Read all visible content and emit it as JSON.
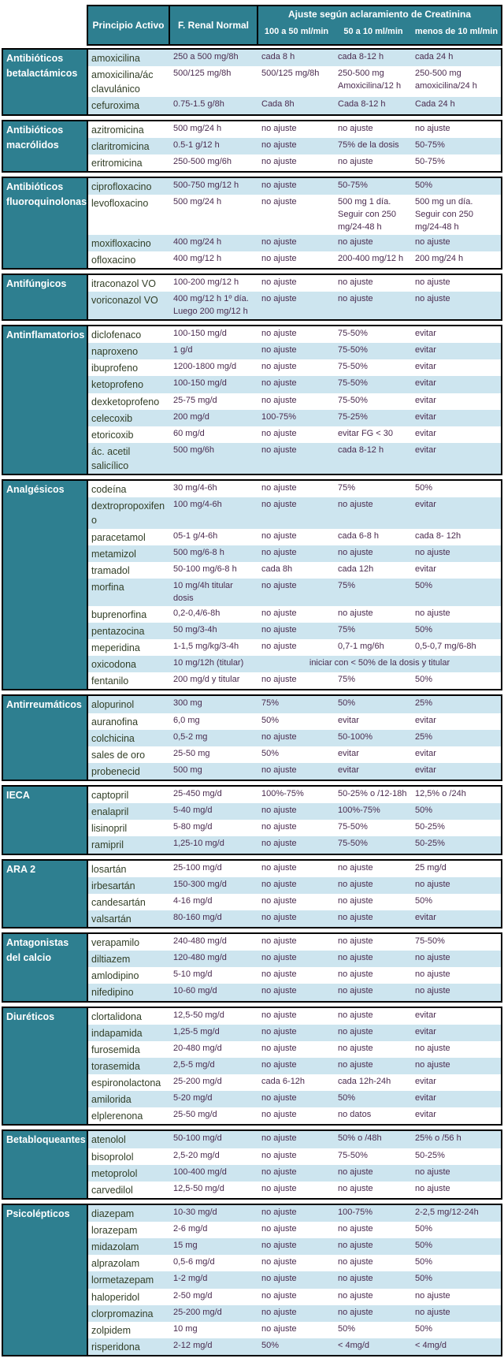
{
  "header": {
    "col_drug": "Principio Activo",
    "col_normal": "F. Renal Normal",
    "adjust_title": "Ajuste según aclaramiento de Creatinina",
    "col_100_50": "100 a 50 ml/min",
    "col_50_10": "50 a 10 ml/min",
    "col_less_10": "menos de 10 ml/min"
  },
  "colors": {
    "header_teal": "#2e7f90",
    "row_shaded": "#cde5ef",
    "row_plain": "#ffffff",
    "drug_text": "#323f27",
    "value_text": "#4a2b4f",
    "border": "#000000"
  },
  "groups": [
    {
      "category": "Antibióticos betalactámicos",
      "first_shaded": true,
      "rows": [
        {
          "drug": "amoxicilina",
          "normal": "250 a 500 mg/8h",
          "c1": "cada 8 h",
          "c2": "cada 8-12 h",
          "c3": "cada 24 h"
        },
        {
          "drug": "amoxicilina/ác clavulánico",
          "normal": "500/125 mg/8h",
          "c1": "500/125 mg/8h",
          "c2": "250-500 mg Amoxicilina/12 h",
          "c3": "250-500 mg amoxicilina/24 h"
        },
        {
          "drug": "cefuroxima",
          "normal": "0.75-1.5 g/8h",
          "c1": "Cada 8h",
          "c2": "Cada 8-12 h",
          "c3": "Cada 24 h"
        }
      ]
    },
    {
      "category": "Antibióticos macrólidos",
      "first_shaded": false,
      "rows": [
        {
          "drug": "azitromicina",
          "normal": "500 mg/24 h",
          "c1": "no ajuste",
          "c2": "no ajuste",
          "c3": "no ajuste"
        },
        {
          "drug": "claritromicina",
          "normal": "0.5-1 g/12 h",
          "c1": "no ajuste",
          "c2": "75% de la dosis",
          "c3": "50-75%"
        },
        {
          "drug": "eritromicina",
          "normal": "250-500 mg/6h",
          "c1": "no ajuste",
          "c2": "no ajuste",
          "c3": "50-75%"
        }
      ]
    },
    {
      "category": "Antibióticos fluoroquinolonas",
      "first_shaded": true,
      "rows": [
        {
          "drug": "ciprofloxacino",
          "normal": "500-750 mg/12 h",
          "c1": "no ajuste",
          "c2": "50-75%",
          "c3": "50%"
        },
        {
          "drug": "levofloxacino",
          "normal": "500 mg/24 h",
          "c1": "no ajuste",
          "c2": "500 mg 1 día. Seguir con 250 mg/24-48 h",
          "c3": "500 mg un día. Seguir con 250 mg/24-48 h"
        },
        {
          "drug": "moxifloxacino",
          "normal": "400 mg/24 h",
          "c1": "no ajuste",
          "c2": "no ajuste",
          "c3": "no ajuste"
        },
        {
          "drug": "ofloxacino",
          "normal": "400 mg/12 h",
          "c1": "no ajuste",
          "c2": "200-400 mg/12 h",
          "c3": "200 mg/24 h"
        }
      ]
    },
    {
      "category": "Antifúngicos",
      "first_shaded": false,
      "rows": [
        {
          "drug": "itraconazol VO",
          "normal": "100-200 mg/12 h",
          "c1": "no ajuste",
          "c2": "no ajuste",
          "c3": "no ajuste"
        },
        {
          "drug": "voriconazol VO",
          "normal": "400 mg/12 h 1º día. Luego 200 mg/12 h",
          "c1": "no ajuste",
          "c2": "no ajuste",
          "c3": "no ajuste"
        }
      ]
    },
    {
      "category": "Antinflamatorios",
      "first_shaded": false,
      "rows": [
        {
          "drug": "diclofenaco",
          "normal": "100-150 mg/d",
          "c1": "no ajuste",
          "c2": "75-50%",
          "c3": "evitar"
        },
        {
          "drug": "naproxeno",
          "normal": "1 g/d",
          "c1": "no ajuste",
          "c2": "75-50%",
          "c3": "evitar"
        },
        {
          "drug": "ibuprofeno",
          "normal": "1200-1800 mg/d",
          "c1": "no ajuste",
          "c2": "75-50%",
          "c3": "evitar"
        },
        {
          "drug": "ketoprofeno",
          "normal": "100-150 mg/d",
          "c1": "no ajuste",
          "c2": "75-50%",
          "c3": "evitar"
        },
        {
          "drug": "dexketoprofeno",
          "normal": "25-75 mg/d",
          "c1": "no ajuste",
          "c2": "75-50%",
          "c3": "evitar"
        },
        {
          "drug": "celecoxib",
          "normal": "200 mg/d",
          "c1": "100-75%",
          "c2": "75-25%",
          "c3": "evitar"
        },
        {
          "drug": "etoricoxib",
          "normal": "60 mg/d",
          "c1": "no ajuste",
          "c2": "evitar FG < 30",
          "c3": "evitar"
        },
        {
          "drug": "ác. acetil salicílico",
          "normal": "500 mg/6h",
          "c1": "no ajuste",
          "c2": "cada 8-12 h",
          "c3": "evitar"
        }
      ]
    },
    {
      "category": "Analgésicos",
      "first_shaded": false,
      "rows": [
        {
          "drug": "codeína",
          "normal": "30 mg/4-6h",
          "c1": "no ajuste",
          "c2": "75%",
          "c3": "50%"
        },
        {
          "drug": "dextropropoxifeno",
          "normal": "100 mg/4-6h",
          "c1": "no ajuste",
          "c2": "no ajuste",
          "c3": "evitar"
        },
        {
          "drug": "paracetamol",
          "normal": "05-1 g/4-6h",
          "c1": "no ajuste",
          "c2": "cada 6-8 h",
          "c3": "cada 8- 12h"
        },
        {
          "drug": "metamizol",
          "normal": "500 mg/6-8 h",
          "c1": "no ajuste",
          "c2": "no ajuste",
          "c3": "no ajuste"
        },
        {
          "drug": "tramadol",
          "normal": "50-100 mg/6-8 h",
          "c1": "cada 8h",
          "c2": "cada 12h",
          "c3": "evitar"
        },
        {
          "drug": "morfina",
          "normal": "10 mg/4h titular dosis",
          "c1": "no ajuste",
          "c2": "75%",
          "c3": "50%"
        },
        {
          "drug": "buprenorfina",
          "normal": "0,2-0,4/6-8h",
          "c1": "no ajuste",
          "c2": "no ajuste",
          "c3": "no ajuste"
        },
        {
          "drug": "pentazocina",
          "normal": "50 mg/3-4h",
          "c1": "no ajuste",
          "c2": "75%",
          "c3": "50%"
        },
        {
          "drug": "meperidina",
          "normal": "1-1,5 mg/kg/3-4h",
          "c1": "no ajuste",
          "c2": "0,7-1 mg/6h",
          "c3": "0,5-0,7 mg/6-8h"
        },
        {
          "drug": "oxicodona",
          "normal": "10 mg/12h (titular)",
          "span": "iniciar con < 50% de la dosis y titular"
        },
        {
          "drug": "fentanilo",
          "normal": "200 mg/d y titular",
          "c1": "no ajuste",
          "c2": "75%",
          "c3": "50%"
        }
      ]
    },
    {
      "category": "Antirreumáticos",
      "first_shaded": true,
      "rows": [
        {
          "drug": "alopurinol",
          "normal": "300 mg",
          "c1": "75%",
          "c2": "50%",
          "c3": "25%"
        },
        {
          "drug": "auranofina",
          "normal": "6,0 mg",
          "c1": "50%",
          "c2": "evitar",
          "c3": "evitar"
        },
        {
          "drug": "colchicina",
          "normal": "0,5-2 mg",
          "c1": "no ajuste",
          "c2": "50-100%",
          "c3": "25%"
        },
        {
          "drug": "sales de oro",
          "normal": "25-50 mg",
          "c1": "50%",
          "c2": "evitar",
          "c3": "evitar"
        },
        {
          "drug": "probenecid",
          "normal": "500 mg",
          "c1": "no ajuste",
          "c2": "evitar",
          "c3": "evitar"
        }
      ]
    },
    {
      "category": "IECA",
      "first_shaded": false,
      "rows": [
        {
          "drug": "captopril",
          "normal": "25-450 mg/d",
          "c1": "100%-75%",
          "c2": "50-25% o /12-18h",
          "c3": "12,5% o /24h"
        },
        {
          "drug": "enalapril",
          "normal": "5-40 mg/d",
          "c1": "no ajuste",
          "c2": "100%-75%",
          "c3": "50%"
        },
        {
          "drug": "lisinopril",
          "normal": "5-80 mg/d",
          "c1": "no ajuste",
          "c2": "75-50%",
          "c3": "50-25%"
        },
        {
          "drug": "ramipril",
          "normal": "1,25-10 mg/d",
          "c1": "no ajuste",
          "c2": "75-50%",
          "c3": "50-25%"
        }
      ]
    },
    {
      "category": "ARA 2",
      "first_shaded": false,
      "rows": [
        {
          "drug": "losartán",
          "normal": "25-100 mg/d",
          "c1": "no ajuste",
          "c2": "no ajuste",
          "c3": "25 mg/d"
        },
        {
          "drug": "irbesartán",
          "normal": "150-300 mg/d",
          "c1": "no ajuste",
          "c2": "no ajuste",
          "c3": "no ajuste"
        },
        {
          "drug": "candesartán",
          "normal": "4-16 mg/d",
          "c1": "no ajuste",
          "c2": "no ajuste",
          "c3": "50%"
        },
        {
          "drug": "valsartán",
          "normal": "80-160 mg/d",
          "c1": "no ajuste",
          "c2": "no ajuste",
          "c3": "evitar"
        }
      ]
    },
    {
      "category": "Antagonistas del calcio",
      "first_shaded": false,
      "rows": [
        {
          "drug": "verapamilo",
          "normal": "240-480 mg/d",
          "c1": "no ajuste",
          "c2": "no ajuste",
          "c3": "75-50%"
        },
        {
          "drug": "diltiazem",
          "normal": "120-480 mg/d",
          "c1": "no ajuste",
          "c2": "no ajuste",
          "c3": "no ajuste"
        },
        {
          "drug": "amlodipino",
          "normal": "5-10 mg/d",
          "c1": "no ajuste",
          "c2": "no ajuste",
          "c3": "no ajuste"
        },
        {
          "drug": "nifedipino",
          "normal": "10-60 mg/d",
          "c1": "no ajuste",
          "c2": "no ajuste",
          "c3": "no ajuste"
        }
      ]
    },
    {
      "category": "Diuréticos",
      "first_shaded": false,
      "rows": [
        {
          "drug": "clortalidona",
          "normal": "12,5-50 mg/d",
          "c1": "no ajuste",
          "c2": "no ajuste",
          "c3": "evitar"
        },
        {
          "drug": "indapamida",
          "normal": "1,25-5 mg/d",
          "c1": "no ajuste",
          "c2": "no ajuste",
          "c3": "evitar"
        },
        {
          "drug": "furosemida",
          "normal": "20-480 mg/d",
          "c1": "no ajuste",
          "c2": "no ajuste",
          "c3": "no ajuste"
        },
        {
          "drug": "torasemida",
          "normal": "2,5-5 mg/d",
          "c1": "no ajuste",
          "c2": "no ajuste",
          "c3": "no ajuste"
        },
        {
          "drug": "espironolactona",
          "normal": "25-200 mg/d",
          "c1": "cada 6-12h",
          "c2": "cada 12h-24h",
          "c3": "evitar"
        },
        {
          "drug": "amilorida",
          "normal": "5-20 mg/d",
          "c1": "no ajuste",
          "c2": "50%",
          "c3": "evitar"
        },
        {
          "drug": "elplerenona",
          "normal": "25-50 mg/d",
          "c1": "no ajuste",
          "c2": "no datos",
          "c3": "evitar"
        }
      ]
    },
    {
      "category": "Betabloqueantes",
      "first_shaded": true,
      "rows": [
        {
          "drug": "atenolol",
          "normal": "50-100 mg/d",
          "c1": "no ajuste",
          "c2": "50% o /48h",
          "c3": "25% o /56 h"
        },
        {
          "drug": "bisoprolol",
          "normal": "2,5-20 mg/d",
          "c1": "no ajuste",
          "c2": "75-50%",
          "c3": "50-25%"
        },
        {
          "drug": "metoprolol",
          "normal": "100-400 mg/d",
          "c1": "no ajuste",
          "c2": "no ajuste",
          "c3": "no ajuste"
        },
        {
          "drug": "carvedilol",
          "normal": "12,5-50 mg/d",
          "c1": "no ajuste",
          "c2": "no ajuste",
          "c3": "no ajuste"
        }
      ]
    },
    {
      "category": "Psicolépticos",
      "first_shaded": true,
      "rows": [
        {
          "drug": "diazepam",
          "normal": "10-30 mg/d",
          "c1": "no ajuste",
          "c2": "100-75%",
          "c3": "2-2,5 mg/12-24h"
        },
        {
          "drug": "lorazepam",
          "normal": "2-6 mg/d",
          "c1": "no ajuste",
          "c2": "no ajuste",
          "c3": "50%"
        },
        {
          "drug": "midazolam",
          "normal": "15 mg",
          "c1": "no ajuste",
          "c2": "no ajuste",
          "c3": "50%"
        },
        {
          "drug": "alprazolam",
          "normal": "0,5-6 mg/d",
          "c1": "no ajuste",
          "c2": "no ajuste",
          "c3": "50%"
        },
        {
          "drug": "lormetazepam",
          "normal": "1-2 mg/d",
          "c1": "no ajuste",
          "c2": "no ajuste",
          "c3": "50%"
        },
        {
          "drug": "haloperidol",
          "normal": "2-50 mg/d",
          "c1": "no ajuste",
          "c2": "no ajuste",
          "c3": "no ajuste"
        },
        {
          "drug": "clorpromazina",
          "normal": "25-200 mg/d",
          "c1": "no ajuste",
          "c2": "no ajuste",
          "c3": "no ajuste"
        },
        {
          "drug": "zolpidem",
          "normal": "10 mg",
          "c1": "no ajuste",
          "c2": "50%",
          "c3": "50%"
        },
        {
          "drug": "risperidona",
          "normal": "2-12 mg/d",
          "c1": "50%",
          "c2": "< 4mg/d",
          "c3": "< 4mg/d"
        }
      ]
    }
  ]
}
